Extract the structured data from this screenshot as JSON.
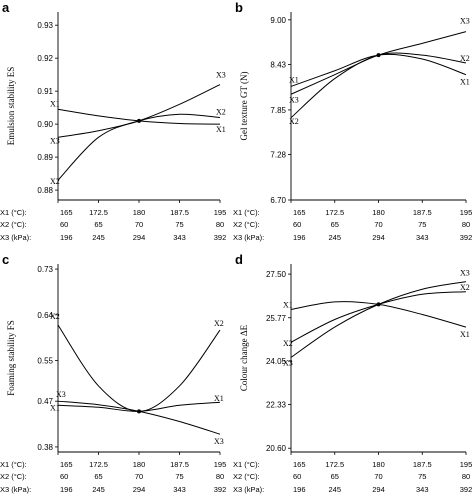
{
  "x_rows": [
    {
      "label": "X1 (°C):",
      "ticks": [
        "165",
        "172.5",
        "180",
        "187.5",
        "195"
      ]
    },
    {
      "label": "X2 (°C):",
      "ticks": [
        "60",
        "65",
        "70",
        "75",
        "80"
      ]
    },
    {
      "label": "X3 (kPa):",
      "ticks": [
        "196",
        "245",
        "294",
        "343",
        "392"
      ]
    }
  ],
  "chart_data": [
    {
      "panel": "a",
      "type": "line",
      "ylabel": "Emulsion stability ES",
      "yticks": [
        "0.93",
        "0.92",
        "0.91",
        "0.90",
        "0.89",
        "0.88"
      ],
      "ylim": [
        0.877,
        0.934
      ],
      "x": [
        -1,
        -0.5,
        0,
        0.5,
        1
      ],
      "series": [
        {
          "name": "X1",
          "values": [
            0.9045,
            0.9025,
            0.901,
            0.9002,
            0.9
          ]
        },
        {
          "name": "X2",
          "values": [
            0.883,
            0.896,
            0.901,
            0.903,
            0.902
          ]
        },
        {
          "name": "X3",
          "values": [
            0.896,
            0.898,
            0.901,
            0.906,
            0.912
          ]
        }
      ]
    },
    {
      "panel": "b",
      "type": "line",
      "ylabel": "Gel texture GT (N)",
      "yticks": [
        "9.00",
        "8.43",
        "7.85",
        "7.28",
        "6.70"
      ],
      "ylim": [
        6.7,
        9.1
      ],
      "x": [
        -1,
        -0.5,
        0,
        0.5,
        1
      ],
      "series": [
        {
          "name": "X1",
          "values": [
            8.15,
            8.35,
            8.55,
            8.5,
            8.3
          ]
        },
        {
          "name": "X2",
          "values": [
            7.75,
            8.25,
            8.55,
            8.55,
            8.45
          ]
        },
        {
          "name": "X3",
          "values": [
            8.05,
            8.3,
            8.55,
            8.7,
            8.85
          ]
        }
      ]
    },
    {
      "panel": "c",
      "type": "line",
      "ylabel": "Foaming stability FS",
      "yticks": [
        "0.73",
        "0.64",
        "0.55",
        "0.47",
        "0.38"
      ],
      "ylim": [
        0.37,
        0.74
      ],
      "x": [
        -1,
        -0.5,
        0,
        0.5,
        1
      ],
      "series": [
        {
          "name": "X1",
          "values": [
            0.462,
            0.458,
            0.45,
            0.462,
            0.468
          ]
        },
        {
          "name": "X2",
          "values": [
            0.62,
            0.5,
            0.45,
            0.5,
            0.61
          ]
        },
        {
          "name": "X3",
          "values": [
            0.47,
            0.463,
            0.45,
            0.43,
            0.405
          ]
        }
      ]
    },
    {
      "panel": "d",
      "type": "line",
      "ylabel": "Colour change ΔE",
      "yticks": [
        "27.50",
        "25.77",
        "24.05",
        "22.33",
        "20.60"
      ],
      "ylim": [
        20.45,
        27.9
      ],
      "x": [
        -1,
        -0.5,
        0,
        0.5,
        1
      ],
      "series": [
        {
          "name": "X1",
          "values": [
            26.1,
            26.4,
            26.3,
            25.9,
            25.4
          ]
        },
        {
          "name": "X2",
          "values": [
            24.8,
            25.7,
            26.3,
            26.7,
            26.8
          ]
        },
        {
          "name": "X3",
          "values": [
            24.2,
            25.4,
            26.3,
            26.9,
            27.2
          ]
        }
      ]
    }
  ]
}
